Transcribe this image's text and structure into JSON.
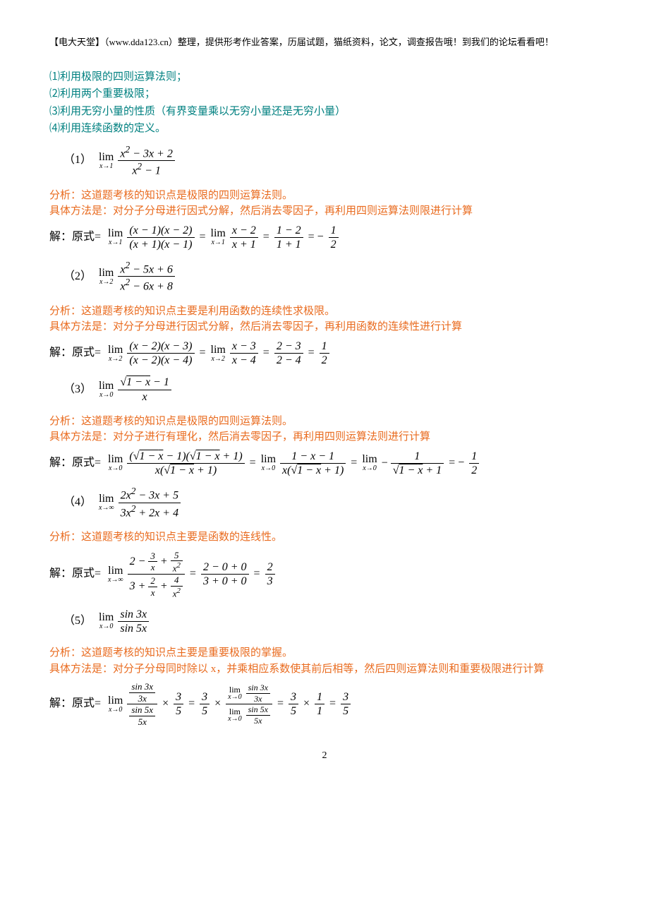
{
  "header": {
    "brand": "【电大天堂】",
    "site": "（www.dda123.cn）",
    "rest": "整理，提供形考作业答案，历届试题，猫纸资料，论文，调查报告哦！到我们的论坛看看吧！"
  },
  "intro": {
    "l1": "⑴利用极限的四则运算法则；",
    "l2": "⑵利用两个重要极限；",
    "l3": "⑶利用无穷小量的性质（有界变量乘以无穷小量还是无穷小量）",
    "l4": "⑷利用连续函数的定义。"
  },
  "p1": {
    "num": "（1）",
    "analysis": "分析：这道题考核的知识点是极限的四则运算法则。",
    "method": "具体方法是：对分子分母进行因式分解，然后消去零因子，再利用四则运算法则限进行计算",
    "sol_label": "解：原式="
  },
  "p2": {
    "num": "（2）",
    "analysis": "分析：这道题考核的知识点主要是利用函数的连续性求极限。",
    "method": "具体方法是：对分子分母进行因式分解，然后消去零因子，再利用函数的连续性进行计算",
    "sol_label": "解：原式="
  },
  "p3": {
    "num": "（3）",
    "analysis": "分析：这道题考核的知识点是极限的四则运算法则。",
    "method": "具体方法是：对分子进行有理化，然后消去零因子，再利用四则运算法则进行计算",
    "sol_label": "解：原式="
  },
  "p4": {
    "num": "（4）",
    "analysis": "分析：这道题考核的知识点主要是函数的连线性。",
    "sol_label": "解：原式="
  },
  "p5": {
    "num": "（5）",
    "analysis": "分析：这道题考核的知识点主要是重要极限的掌握。",
    "method": "具体方法是：对分子分母同时除以 x，并乘相应系数使其前后相等，然后四则运算法则和重要极限进行计算",
    "sol_label": "解：原式="
  },
  "pagenum": "2",
  "colors": {
    "teal": "#008080",
    "orange": "#e96b1f"
  }
}
